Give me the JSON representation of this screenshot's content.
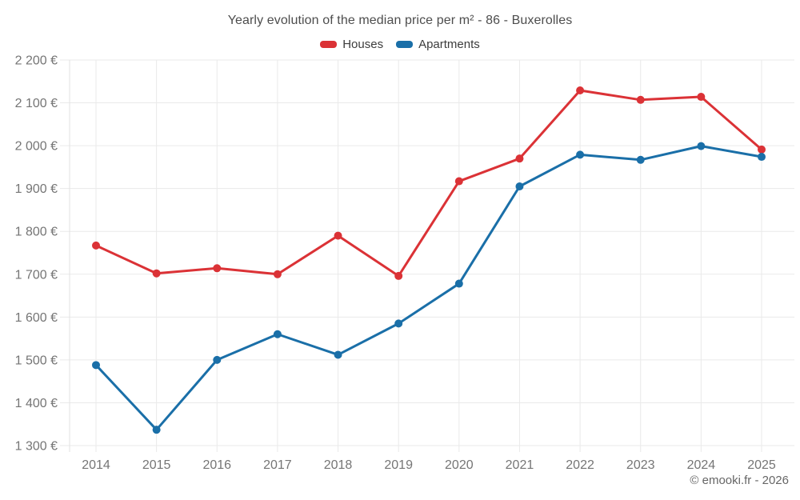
{
  "chart": {
    "copyright": "© emooki.fr - 2026"
  },
  "chart_data": {
    "type": "line",
    "title": "Yearly evolution of the median price per m² - 86 - Buxerolles",
    "xlabel": "",
    "ylabel": "",
    "x": [
      2014,
      2015,
      2016,
      2017,
      2018,
      2019,
      2020,
      2021,
      2022,
      2023,
      2024,
      2025
    ],
    "series": [
      {
        "name": "Houses",
        "color": "#db3236",
        "values": [
          1767,
          1702,
          1714,
          1700,
          1790,
          1696,
          1917,
          1970,
          2129,
          2107,
          2114,
          1991
        ]
      },
      {
        "name": "Apartments",
        "color": "#1a6fa8",
        "values": [
          1488,
          1337,
          1500,
          1560,
          1512,
          1585,
          1678,
          1905,
          1979,
          1967,
          1999,
          1974
        ]
      }
    ],
    "ylim": [
      1300,
      2200
    ],
    "y_tick_step": 100,
    "y_tick_suffix": " €",
    "grid": true,
    "legend_position": "top",
    "marker": "circle"
  }
}
